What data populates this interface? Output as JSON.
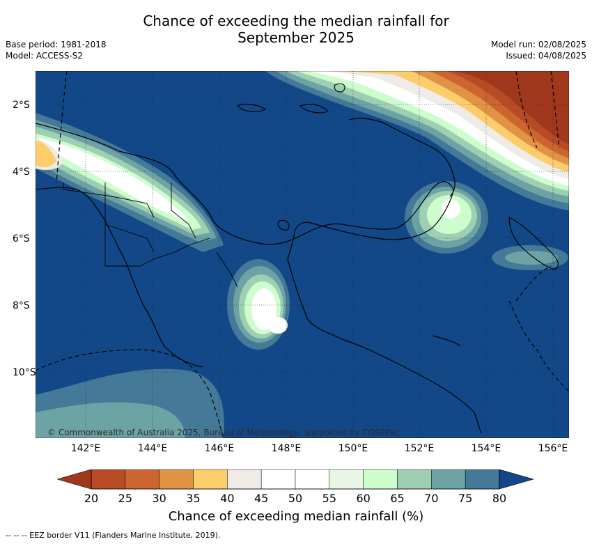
{
  "title_line1": "Chance of exceeding the median rainfall for",
  "title_line2": "September 2025",
  "meta_left": [
    "Base period: 1981-2018",
    "Model: ACCESS-S2"
  ],
  "meta_right": [
    "Model run: 02/08/2025",
    "Issued: 04/08/2025"
  ],
  "copyright": "© Commonwealth of Australia 2025, Bureau of Meteorology, supported by COSPPac",
  "lon_labels": [
    "142°E",
    "144°E",
    "146°E",
    "148°E",
    "150°E",
    "152°E",
    "154°E",
    "156°E"
  ],
  "lat_labels": [
    "2°S",
    "4°S",
    "6°S",
    "8°S",
    "10°S"
  ],
  "colorbar": {
    "title": "Chance of exceeding median rainfall (%)",
    "ticks": [
      "20",
      "25",
      "30",
      "35",
      "40",
      "45",
      "50",
      "55",
      "60",
      "65",
      "70",
      "75",
      "80"
    ],
    "colors": [
      "#a0381e",
      "#b94a26",
      "#cc6530",
      "#e09245",
      "#fdcd6b",
      "#efebe6",
      "#ffffff",
      "#ffffff",
      "#e9f6e6",
      "#cdfccd",
      "#9fcfb2",
      "#6da3a4",
      "#447998",
      "#124887"
    ]
  },
  "footnote": "-- -- -- EEZ border V11 (Flanders Marine Institute, 2019).",
  "map": {
    "background_color": "#124887",
    "grid": true
  }
}
